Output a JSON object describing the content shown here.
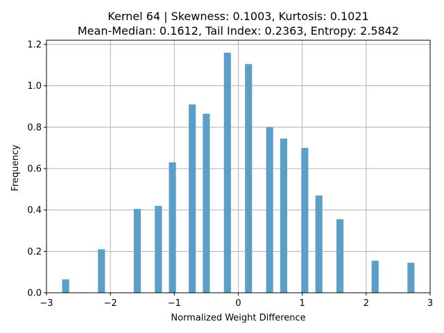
{
  "chart_data": {
    "type": "bar",
    "title_line1": "Kernel 64 | Skewness: 0.1003, Kurtosis: 0.1021",
    "title_line2": "Mean-Median: 0.1612, Tail Index: 0.2363, Entropy: 2.5842",
    "xlabel": "Normalized Weight Difference",
    "ylabel": "Frequency",
    "xlim": [
      -3,
      3
    ],
    "ylim": [
      0,
      1.22
    ],
    "grid": true,
    "bar_color": "#5b9fc9",
    "bin_width": 0.11,
    "x_ticks": [
      {
        "value": -3,
        "label": "−3"
      },
      {
        "value": -2,
        "label": "−2"
      },
      {
        "value": -1,
        "label": "−1"
      },
      {
        "value": 0,
        "label": "0"
      },
      {
        "value": 1,
        "label": "1"
      },
      {
        "value": 2,
        "label": "2"
      },
      {
        "value": 3,
        "label": "3"
      }
    ],
    "y_ticks": [
      {
        "value": 0.0,
        "label": "0.0"
      },
      {
        "value": 0.2,
        "label": "0.2"
      },
      {
        "value": 0.4,
        "label": "0.4"
      },
      {
        "value": 0.6,
        "label": "0.6"
      },
      {
        "value": 0.8,
        "label": "0.8"
      },
      {
        "value": 1.0,
        "label": "1.0"
      },
      {
        "value": 1.2,
        "label": "1.2"
      }
    ],
    "x": [
      -2.7,
      -2.14,
      -1.58,
      -1.25,
      -1.03,
      -0.72,
      -0.5,
      -0.17,
      0.16,
      0.49,
      0.71,
      1.04,
      1.26,
      1.59,
      2.14,
      2.7
    ],
    "values": [
      0.065,
      0.21,
      0.405,
      0.42,
      0.63,
      0.91,
      0.865,
      1.16,
      1.105,
      0.8,
      0.745,
      0.7,
      0.47,
      0.355,
      0.155,
      0.145
    ]
  }
}
